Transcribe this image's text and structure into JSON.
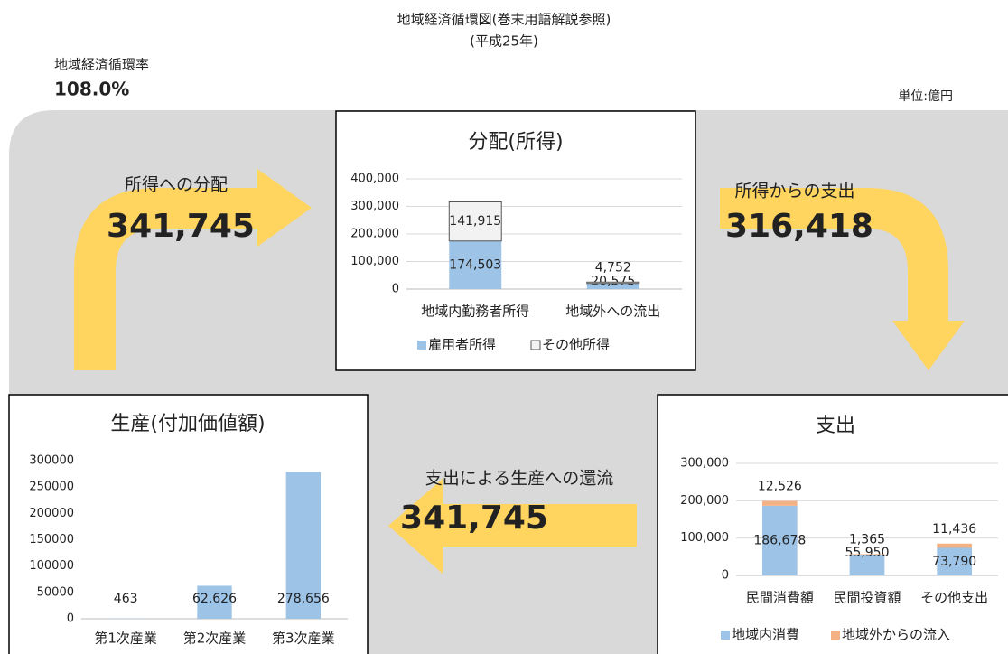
{
  "title": "地域経済循環図(巻末用語解説参照)",
  "subtitle": "(平成25年)",
  "rate": {
    "label": "地域経済循環率",
    "value": "108.0%"
  },
  "unit": "単位:億円",
  "flows": [
    {
      "label": "所得への分配",
      "value": "341,745"
    },
    {
      "label": "所得からの支出",
      "value": "316,418"
    },
    {
      "label": "支出による生産への還流",
      "value": "341,745"
    }
  ],
  "chart_data": [
    {
      "type": "stacked_bar",
      "title": "分配(所得)",
      "categories": [
        "地域内勤務者所得",
        "地域外への流出"
      ],
      "series": [
        {
          "name": "雇用者所得",
          "color": "#9dc3e6",
          "values": [
            174503,
            20575
          ],
          "value_labels": [
            "174,503",
            "20,575"
          ]
        },
        {
          "name": "その他所得",
          "color": "#f2f2f2",
          "values": [
            141915,
            4752
          ],
          "value_labels": [
            "141,915",
            "4,752"
          ]
        }
      ],
      "ylim": [
        0,
        400000
      ],
      "yticks": [
        0,
        {
          "value": 100000,
          "label": "100,000"
        },
        {
          "value": 200000,
          "label": "200,000"
        },
        {
          "value": 300000,
          "label": "300,000"
        },
        {
          "value": 400000,
          "label": "400,000"
        }
      ],
      "grid": true
    },
    {
      "type": "bar",
      "title": "生産(付加価値額)",
      "categories": [
        "第1次産業",
        "第2次産業",
        "第3次産業"
      ],
      "series": [
        {
          "color": "#9dc3e6",
          "values": [
            463,
            62626,
            278656
          ],
          "value_labels": [
            "463",
            "62,626",
            "278,656"
          ]
        }
      ],
      "ylim": [
        0,
        300000
      ],
      "yticks": [
        0,
        50000,
        100000,
        150000,
        200000,
        250000,
        300000
      ],
      "grid": false
    },
    {
      "type": "stacked_bar",
      "title": "支出",
      "categories": [
        "民間消費額",
        "民間投資額",
        "その他支出"
      ],
      "series": [
        {
          "name": "地域内消費",
          "color": "#9dc3e6",
          "values": [
            186678,
            55950,
            73790
          ],
          "value_labels": [
            "186,678",
            "55,950",
            "73,790"
          ]
        },
        {
          "name": "地域外からの流入",
          "color": "#f4b183",
          "values": [
            12526,
            1365,
            11436
          ],
          "value_labels": [
            "12,526",
            "1,365",
            "11,436"
          ]
        }
      ],
      "ylim": [
        0,
        300000
      ],
      "yticks": [
        0,
        {
          "value": 100000,
          "label": "100,000"
        },
        {
          "value": 200000,
          "label": "200,000"
        },
        {
          "value": 300000,
          "label": "300,000"
        }
      ],
      "grid": true
    }
  ]
}
